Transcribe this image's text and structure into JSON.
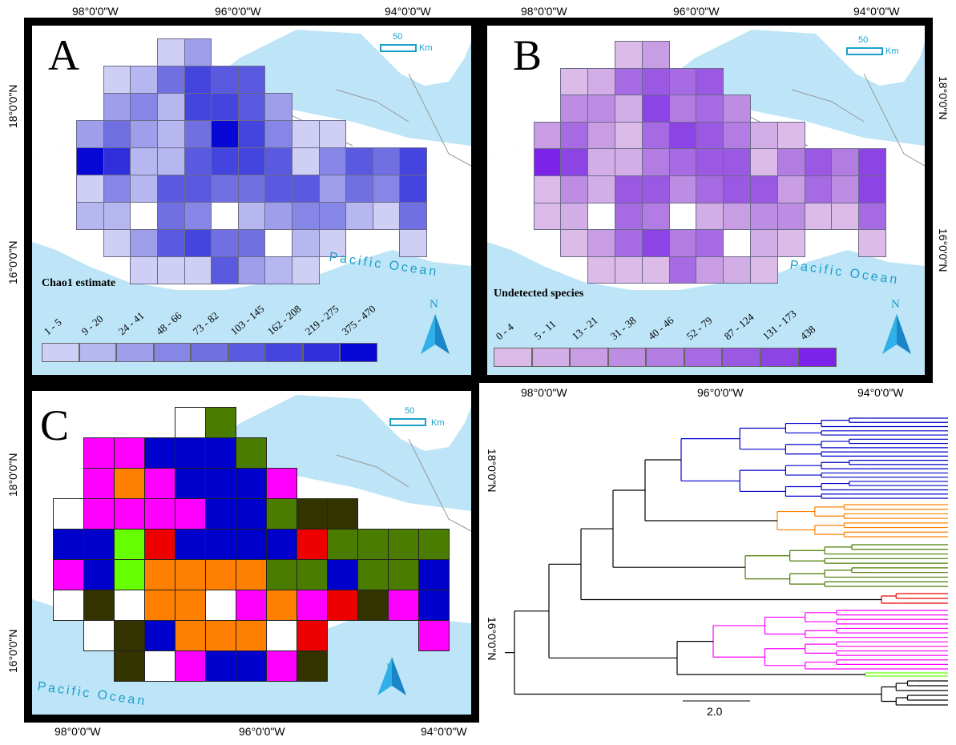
{
  "coords": {
    "lon_98": "98°0'0\"W",
    "lon_96": "96°0'0\"W",
    "lon_94": "94°0'0\"W",
    "lat_18": "18°0'0\"N",
    "lat_16": "16°0'0\"N"
  },
  "panels": {
    "A": {
      "letter": "A",
      "legend_title": "Chao1 estimate",
      "legend": [
        "1 - 5",
        "9 - 20",
        "24 - 41",
        "48 - 66",
        "73 - 82",
        "103 - 145",
        "162 - 208",
        "219 - 275",
        "375 - 470"
      ],
      "legend_colors": [
        "#cfcff5",
        "#b6b6f0",
        "#9e9eeb",
        "#8686e6",
        "#7070e3",
        "#5a5ae0",
        "#4444de",
        "#2f2fdc",
        "#0808d6"
      ]
    },
    "B": {
      "letter": "B",
      "legend_title": "Undetected species",
      "legend": [
        "0 - 4",
        "5 - 11",
        "13 - 21",
        "31 - 38",
        "40 - 46",
        "52 - 79",
        "87 - 124",
        "131 - 173",
        "438"
      ],
      "legend_colors": [
        "#dcbbe8",
        "#d2ade6",
        "#c89de4",
        "#bd8ce3",
        "#b27ce2",
        "#a66ae2",
        "#9a58e3",
        "#8d44e4",
        "#7d22e8"
      ]
    },
    "C": {
      "letter": "C"
    }
  },
  "scale_bar": {
    "value": "50",
    "unit": "Km"
  },
  "ocean_label": "Pacific Ocean",
  "north_label": "N",
  "tree": {
    "scale_label": "2.0",
    "clade_colors": {
      "blue": "#0000cc",
      "orange": "#ff8000",
      "green": "#4a7c00",
      "red": "#ee0000",
      "magenta": "#ff00ff",
      "lime": "#66ff00",
      "black": "#000000"
    }
  }
}
